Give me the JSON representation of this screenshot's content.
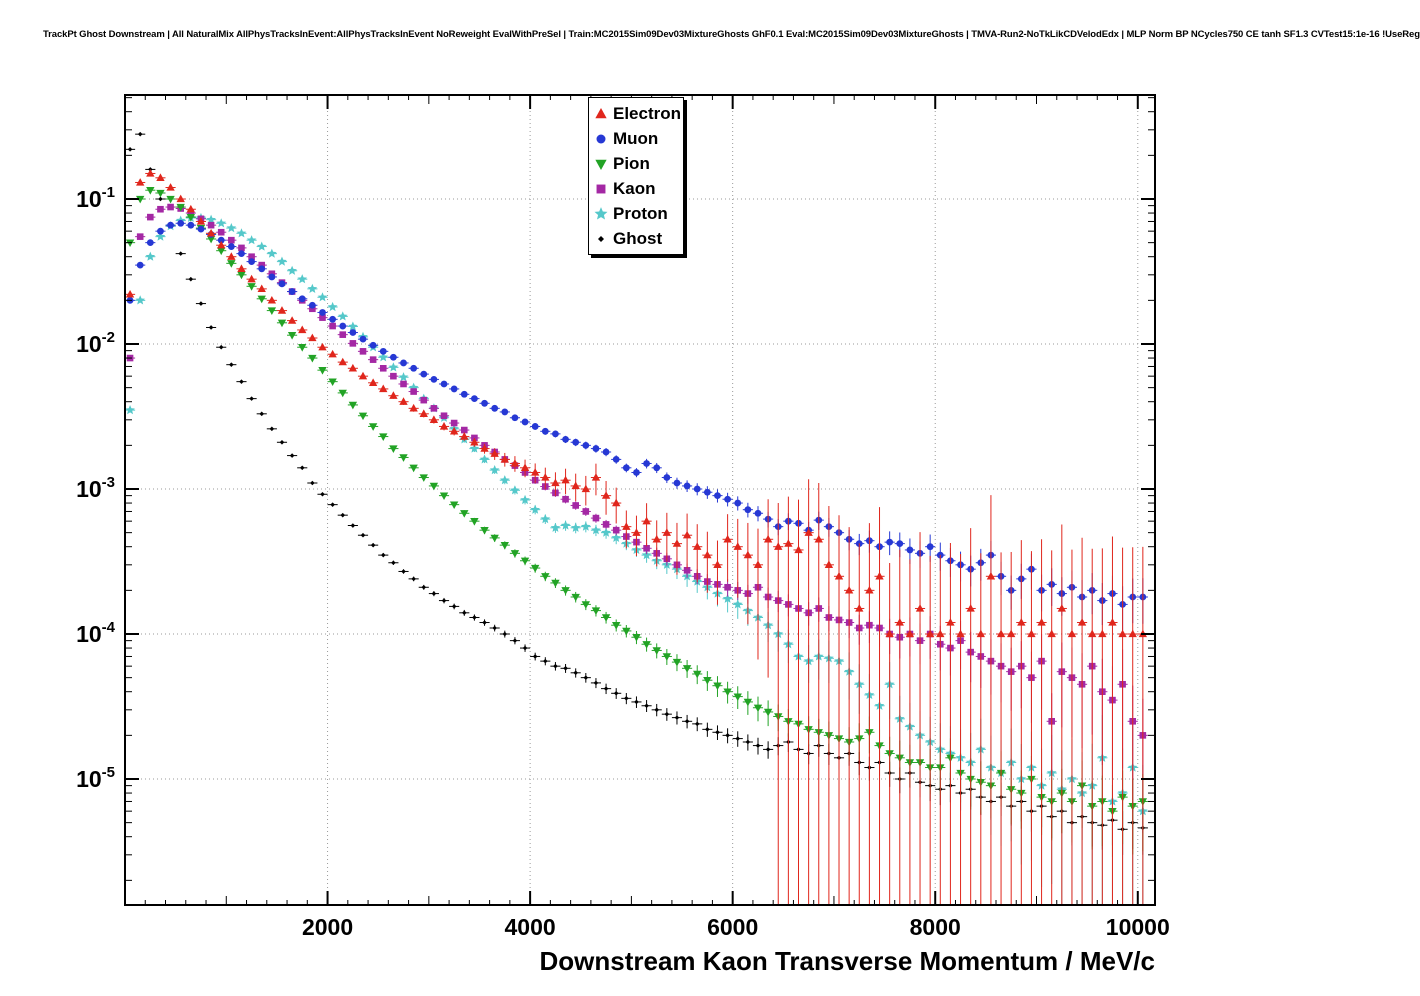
{
  "page_title": "TrackPt Ghost Downstream | All NaturalMix AllPhysTracksInEvent:AllPhysTracksInEvent NoReweight EvalWithPreSel | Train:MC2015Sim09Dev03MixtureGhosts GhF0.1 Eval:MC2015Sim09Dev03MixtureGhosts | TMVA-Run2-NoTkLikCDVelodEdx | MLP Norm BP NCycles750 CE tanh SF1.3 CVTest15:1e-16 !UseReg",
  "axes": {
    "x_title": "Downstream Kaon Transverse Momentum / MeV/c",
    "x_ticks": [
      2000,
      4000,
      6000,
      8000,
      10000
    ],
    "x_tick_labels": [
      "2000",
      "4000",
      "6000",
      "8000",
      "10000"
    ],
    "x_range": [
      0,
      10170
    ],
    "y_scale": "log",
    "y_ticks": [
      0.1,
      0.01,
      0.001,
      0.0001,
      1e-05
    ],
    "y_tick_labels": [
      "10^-1",
      "10^-2",
      "10^-3",
      "10^-4",
      "10^-5"
    ],
    "grid": "dotted",
    "grid_color": "#9a9a9a"
  },
  "chart_data": {
    "type": "scatter",
    "x_start": 50,
    "x_step": 100,
    "x_bin_halfwidth": 50,
    "legend_position": "top-center",
    "series": [
      {
        "name": "Electron",
        "color": "#e0261c",
        "marker": "triangle-up",
        "err_rel": [
          [
            0,
            0.015
          ],
          [
            2000,
            0.03
          ],
          [
            3500,
            0.07
          ],
          [
            5000,
            0.3
          ],
          [
            6000,
            0.5
          ],
          [
            6900,
            1.5
          ],
          [
            8000,
            2.5
          ],
          [
            10100,
            3.0
          ]
        ],
        "values": [
          0.022,
          0.13,
          0.15,
          0.14,
          0.12,
          0.1,
          0.085,
          0.07,
          0.058,
          0.048,
          0.04,
          0.033,
          0.028,
          0.024,
          0.02,
          0.017,
          0.0145,
          0.0125,
          0.011,
          0.0095,
          0.0085,
          0.0075,
          0.0068,
          0.006,
          0.0054,
          0.0049,
          0.0044,
          0.004,
          0.0036,
          0.0033,
          0.003,
          0.0027,
          0.0025,
          0.0023,
          0.0021,
          0.0019,
          0.00175,
          0.0016,
          0.0015,
          0.0014,
          0.0013,
          0.0012,
          0.0011,
          0.00115,
          0.00105,
          0.001,
          0.0012,
          0.0009,
          0.0008,
          0.00055,
          0.0005,
          0.0006,
          0.00045,
          0.0005,
          0.00042,
          0.00048,
          0.0004,
          0.00035,
          0.0003,
          0.00045,
          0.0004,
          0.00035,
          0.0003,
          0.00045,
          0.0004,
          0.00042,
          0.00038,
          0.0005,
          0.00045,
          0.0003,
          0.00025,
          0.0002,
          0.00015,
          0.0002,
          0.00025,
          0.0001,
          0.00012,
          0.0001,
          0.00015,
          0.0001,
          0.0001,
          0.00012,
          0.0001,
          0.00015,
          0.0001,
          0.00025,
          0.0001,
          0.0001,
          0.00012,
          0.0001,
          0.00012,
          0.0001,
          0.00015,
          0.0001,
          0.00012,
          0.0001,
          0.0001,
          0.00012,
          0.0001,
          0.0001,
          0.0001
        ]
      },
      {
        "name": "Muon",
        "color": "#2638d4",
        "marker": "circle",
        "err_rel": [
          [
            0,
            0.008
          ],
          [
            3000,
            0.03
          ],
          [
            5000,
            0.07
          ],
          [
            7000,
            0.15
          ],
          [
            8500,
            0.25
          ],
          [
            10100,
            0.35
          ]
        ],
        "values": [
          0.02,
          0.035,
          0.05,
          0.06,
          0.066,
          0.068,
          0.066,
          0.062,
          0.057,
          0.052,
          0.047,
          0.042,
          0.037,
          0.033,
          0.029,
          0.026,
          0.023,
          0.0205,
          0.0185,
          0.0165,
          0.0148,
          0.0133,
          0.012,
          0.0108,
          0.0098,
          0.0089,
          0.0081,
          0.0074,
          0.0068,
          0.0062,
          0.0057,
          0.0053,
          0.0049,
          0.0045,
          0.0042,
          0.0039,
          0.0036,
          0.0034,
          0.0031,
          0.0029,
          0.0027,
          0.0025,
          0.0024,
          0.0022,
          0.0021,
          0.002,
          0.0019,
          0.0018,
          0.0016,
          0.0014,
          0.0013,
          0.0015,
          0.0014,
          0.0012,
          0.0011,
          0.00105,
          0.001,
          0.00095,
          0.0009,
          0.00085,
          0.0008,
          0.00072,
          0.00068,
          0.00062,
          0.00055,
          0.0006,
          0.00058,
          0.00052,
          0.00061,
          0.00055,
          0.0005,
          0.00045,
          0.00042,
          0.00044,
          0.0004,
          0.00043,
          0.00042,
          0.00038,
          0.00036,
          0.0004,
          0.00035,
          0.00032,
          0.0003,
          0.00028,
          0.00031,
          0.00035,
          0.00025,
          0.0002,
          0.00024,
          0.00028,
          0.0002,
          0.00022,
          0.00019,
          0.00021,
          0.00018,
          0.0002,
          0.00017,
          0.00019,
          0.00016,
          0.00018,
          0.00018
        ]
      },
      {
        "name": "Pion",
        "color": "#22a325",
        "marker": "triangle-down",
        "err_rel": [
          [
            0,
            0.008
          ],
          [
            3000,
            0.04
          ],
          [
            5000,
            0.1
          ],
          [
            7000,
            0.25
          ],
          [
            8500,
            0.4
          ],
          [
            10100,
            0.55
          ]
        ],
        "values": [
          0.05,
          0.1,
          0.115,
          0.11,
          0.1,
          0.088,
          0.075,
          0.063,
          0.053,
          0.044,
          0.036,
          0.03,
          0.025,
          0.0205,
          0.017,
          0.014,
          0.0115,
          0.0095,
          0.008,
          0.0066,
          0.0055,
          0.0046,
          0.0038,
          0.0032,
          0.0027,
          0.0023,
          0.0019,
          0.00165,
          0.0014,
          0.0012,
          0.00105,
          0.0009,
          0.00078,
          0.00068,
          0.0006,
          0.00052,
          0.00046,
          0.00041,
          0.00036,
          0.00032,
          0.000285,
          0.00025,
          0.000225,
          0.0002,
          0.00018,
          0.00016,
          0.000145,
          0.00013,
          0.000115,
          0.000105,
          9.5e-05,
          8.5e-05,
          7.7e-05,
          7e-05,
          6.4e-05,
          5.8e-05,
          5.3e-05,
          4.8e-05,
          4.4e-05,
          4e-05,
          3.7e-05,
          3.4e-05,
          3.1e-05,
          2.9e-05,
          2.7e-05,
          2.5e-05,
          2.4e-05,
          2.2e-05,
          2.1e-05,
          2e-05,
          1.9e-05,
          1.8e-05,
          1.9e-05,
          2.1e-05,
          1.7e-05,
          1.5e-05,
          1.4e-05,
          1.3e-05,
          1.3e-05,
          1.2e-05,
          1.2e-05,
          1.4e-05,
          1.1e-05,
          1e-05,
          9.5e-06,
          9e-06,
          1.1e-05,
          8.5e-06,
          8e-06,
          1e-05,
          7.5e-06,
          7e-06,
          8e-06,
          7e-06,
          9e-06,
          6.5e-06,
          7e-06,
          6e-06,
          7.5e-06,
          6.5e-06,
          7e-06
        ]
      },
      {
        "name": "Kaon",
        "color": "#a428a4",
        "marker": "square",
        "err_rel": [
          [
            0,
            0.008
          ],
          [
            3000,
            0.03
          ],
          [
            5000,
            0.08
          ],
          [
            7000,
            0.2
          ],
          [
            8500,
            0.4
          ],
          [
            10100,
            0.8
          ]
        ],
        "values": [
          0.008,
          0.055,
          0.075,
          0.085,
          0.088,
          0.086,
          0.08,
          0.073,
          0.066,
          0.059,
          0.052,
          0.046,
          0.04,
          0.035,
          0.0305,
          0.0265,
          0.023,
          0.02,
          0.0175,
          0.0152,
          0.0133,
          0.0116,
          0.0101,
          0.0089,
          0.0078,
          0.0068,
          0.006,
          0.0053,
          0.0047,
          0.0041,
          0.0036,
          0.0032,
          0.00285,
          0.00255,
          0.00225,
          0.002,
          0.0018,
          0.0016,
          0.00145,
          0.0013,
          0.00115,
          0.00104,
          0.00094,
          0.00085,
          0.00077,
          0.0007,
          0.00063,
          0.00057,
          0.00052,
          0.00047,
          0.00043,
          0.00039,
          0.00036,
          0.00033,
          0.0003,
          0.000275,
          0.00025,
          0.00023,
          0.00022,
          0.00021,
          0.0002,
          0.00019,
          0.00021,
          0.00018,
          0.00017,
          0.00016,
          0.00015,
          0.00014,
          0.00015,
          0.00013,
          0.000125,
          0.00012,
          0.00011,
          0.000115,
          0.00011,
          0.0001,
          9.5e-05,
          0.0001,
          9e-05,
          0.0001,
          8.5e-05,
          8e-05,
          9e-05,
          7.5e-05,
          7e-05,
          6.5e-05,
          6e-05,
          5.5e-05,
          6e-05,
          5e-05,
          6.5e-05,
          2.5e-05,
          5.5e-05,
          5e-05,
          4.5e-05,
          6e-05,
          4e-05,
          3.5e-05,
          4.5e-05,
          2.5e-05,
          2e-05
        ]
      },
      {
        "name": "Proton",
        "color": "#55c8ca",
        "marker": "star",
        "err_rel": [
          [
            0,
            0.008
          ],
          [
            3000,
            0.04
          ],
          [
            5000,
            0.1
          ],
          [
            6500,
            0.25
          ],
          [
            8000,
            0.5
          ],
          [
            10100,
            1.1
          ]
        ],
        "values": [
          0.0035,
          0.02,
          0.04,
          0.055,
          0.065,
          0.071,
          0.074,
          0.074,
          0.072,
          0.068,
          0.063,
          0.058,
          0.052,
          0.047,
          0.042,
          0.037,
          0.032,
          0.028,
          0.024,
          0.021,
          0.018,
          0.0155,
          0.0132,
          0.0112,
          0.0095,
          0.0081,
          0.0069,
          0.0059,
          0.005,
          0.0042,
          0.0036,
          0.0031,
          0.0026,
          0.0022,
          0.0019,
          0.0016,
          0.00135,
          0.00115,
          0.00098,
          0.00084,
          0.00072,
          0.00062,
          0.00054,
          0.00056,
          0.00054,
          0.00055,
          0.00052,
          0.0005,
          0.00046,
          0.00042,
          0.00038,
          0.00035,
          0.00032,
          0.0003,
          0.00028,
          0.00025,
          0.00023,
          0.00021,
          0.00019,
          0.000175,
          0.00016,
          0.000145,
          0.00013,
          0.000115,
          0.0001,
          8.5e-05,
          7e-05,
          6.5e-05,
          7e-05,
          6.8e-05,
          6.5e-05,
          5.5e-05,
          4.5e-05,
          3.8e-05,
          3.2e-05,
          4.5e-05,
          2.6e-05,
          2.3e-05,
          2e-05,
          1.8e-05,
          1.6e-05,
          1.5e-05,
          1.4e-05,
          1.3e-05,
          1.6e-05,
          1.2e-05,
          1.1e-05,
          1.3e-05,
          1e-05,
          1.2e-05,
          9e-06,
          1.1e-05,
          8.5e-06,
          1e-05,
          8e-06,
          9e-06,
          1.4e-05,
          7e-06,
          8e-06,
          1.2e-05,
          6e-06
        ]
      },
      {
        "name": "Ghost",
        "color": "#000000",
        "marker": "diamond",
        "err_rel": [
          [
            0,
            0.004
          ],
          [
            2000,
            0.02
          ],
          [
            4000,
            0.06
          ],
          [
            6000,
            0.12
          ],
          [
            8000,
            0.22
          ],
          [
            10100,
            0.35
          ]
        ],
        "values": [
          0.22,
          0.28,
          0.16,
          0.1,
          0.065,
          0.042,
          0.028,
          0.019,
          0.013,
          0.0095,
          0.0072,
          0.0055,
          0.0042,
          0.0033,
          0.0026,
          0.0021,
          0.0017,
          0.0014,
          0.0011,
          0.00092,
          0.00078,
          0.00066,
          0.00056,
          0.00048,
          0.00041,
          0.00035,
          0.00031,
          0.00027,
          0.00024,
          0.00021,
          0.00019,
          0.00017,
          0.000155,
          0.00014,
          0.00013,
          0.00012,
          0.00011,
          0.0001,
          9e-05,
          8e-05,
          7e-05,
          6.5e-05,
          6e-05,
          5.8e-05,
          5.4e-05,
          5e-05,
          4.6e-05,
          4.2e-05,
          3.9e-05,
          3.6e-05,
          3.4e-05,
          3.2e-05,
          3e-05,
          2.8e-05,
          2.65e-05,
          2.5e-05,
          2.4e-05,
          2.2e-05,
          2.1e-05,
          2e-05,
          1.9e-05,
          1.8e-05,
          1.7e-05,
          1.6e-05,
          1.7e-05,
          1.8e-05,
          1.6e-05,
          1.5e-05,
          1.7e-05,
          1.5e-05,
          1.4e-05,
          1.5e-05,
          1.3e-05,
          1.2e-05,
          1.3e-05,
          1.1e-05,
          1e-05,
          1.1e-05,
          9.5e-06,
          9e-06,
          8.5e-06,
          9e-06,
          8e-06,
          8.5e-06,
          7.5e-06,
          7e-06,
          7.5e-06,
          6.5e-06,
          7e-06,
          6e-06,
          6.5e-06,
          5.5e-06,
          6e-06,
          5e-06,
          5.5e-06,
          5e-06,
          4.8e-06,
          5.2e-06,
          4.5e-06,
          5e-06,
          4.6e-06
        ]
      }
    ]
  }
}
